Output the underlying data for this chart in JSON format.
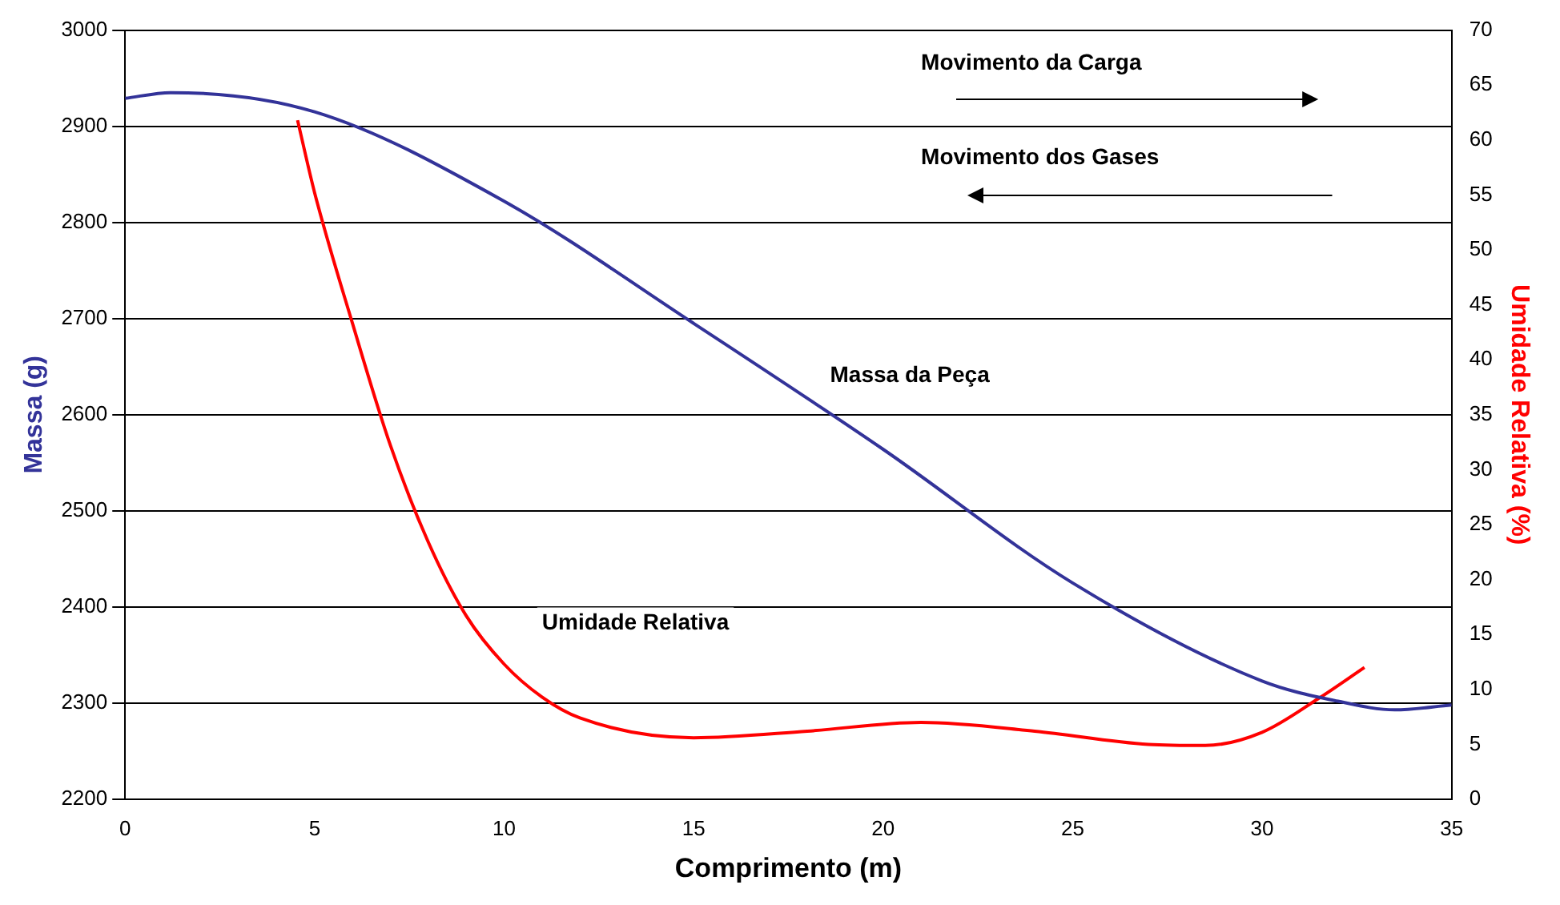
{
  "chart_data": {
    "type": "line",
    "xlabel": "Comprimento (m)",
    "ylabel": "Massa (g)",
    "y2label": "Umidade Relativa (%)",
    "xlim": [
      0,
      35
    ],
    "xticks": [
      0,
      5,
      10,
      15,
      20,
      25,
      30,
      35
    ],
    "ylim": [
      2200,
      3000
    ],
    "yticks": [
      2200,
      2300,
      2400,
      2500,
      2600,
      2700,
      2800,
      2900,
      3000
    ],
    "y2lim": [
      0,
      70
    ],
    "y2ticks": [
      0,
      5,
      10,
      15,
      20,
      25,
      30,
      35,
      40,
      45,
      50,
      55,
      60,
      65,
      70
    ],
    "grid": "y",
    "legend": false,
    "marker": "none",
    "line_style": "solid",
    "annotations": [
      "Movimento da Carga",
      "Movimento dos Gases"
    ],
    "series": [
      {
        "name": "Massa da Peça",
        "color": "#333399",
        "x": [
          0,
          1.2,
          5,
          10,
          15,
          20,
          25,
          30,
          32,
          33.5,
          35
        ],
        "values": [
          2929,
          2935,
          2915,
          2822,
          2695,
          2564,
          2425,
          2323,
          2302,
          2293,
          2298
        ]
      },
      {
        "name": "Umidade Relativa",
        "color": "#ff0000",
        "axis": "y2",
        "x": [
          4.55,
          5,
          6,
          7,
          8,
          9,
          10,
          11,
          12,
          15,
          18,
          21,
          24,
          27,
          28.5,
          30,
          31.5,
          32.7
        ],
        "values": [
          61.8,
          55.2,
          43.3,
          32.2,
          23.4,
          16.7,
          12.3,
          9.3,
          7.4,
          5.6,
          6.2,
          7.0,
          6.2,
          5.0,
          4.9,
          6.1,
          9.2,
          12.0
        ]
      }
    ]
  }
}
